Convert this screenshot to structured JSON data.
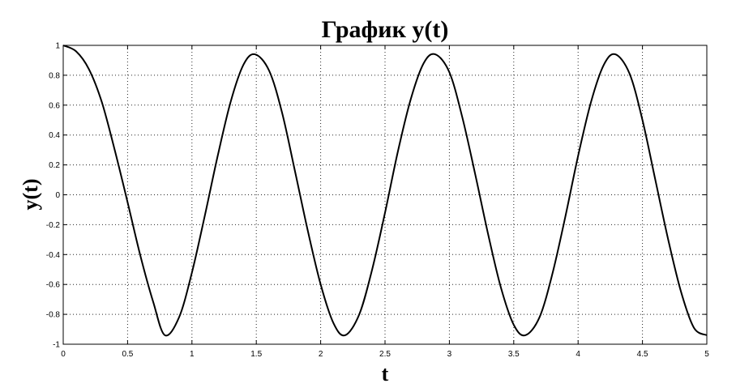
{
  "chart_data": {
    "type": "line",
    "title": "График y(t)",
    "xlabel": "t",
    "ylabel": "y(t)",
    "xlim": [
      0,
      5
    ],
    "ylim": [
      -1,
      1
    ],
    "grid": true,
    "xticks": [
      0,
      0.5,
      1,
      1.5,
      2,
      2.5,
      3,
      3.5,
      4,
      4.5,
      5
    ],
    "xtick_labels": [
      "0",
      "0.5",
      "1",
      "1.5",
      "2",
      "2.5",
      "3",
      "3.5",
      "4",
      "4.5",
      "5"
    ],
    "yticks": [
      1,
      0.8,
      0.6,
      0.4,
      0.2,
      0,
      -0.2,
      -0.4,
      -0.6,
      -0.8,
      -1
    ],
    "ytick_labels": [
      "1",
      "0.8",
      "0.6",
      "0.4",
      "0.2",
      "0",
      "-0.2",
      "-0.4",
      "-0.6",
      "-0.8",
      "-1"
    ],
    "line_color": "#000000",
    "series": [
      {
        "x": [
          0,
          0.1,
          0.2,
          0.3,
          0.4,
          0.5,
          0.6,
          0.7,
          0.79,
          0.9,
          1.0,
          1.1,
          1.2,
          1.3,
          1.4,
          1.49,
          1.6,
          1.7,
          1.8,
          1.9,
          2.0,
          2.1,
          2.19,
          2.3,
          2.4,
          2.5,
          2.6,
          2.7,
          2.8,
          2.89,
          3.0,
          3.1,
          3.2,
          3.3,
          3.4,
          3.5,
          3.59,
          3.7,
          3.8,
          3.9,
          4.0,
          4.1,
          4.2,
          4.29,
          4.4,
          4.5,
          4.6,
          4.7,
          4.8,
          4.9,
          5.0
        ],
        "y": [
          1.0,
          0.96,
          0.84,
          0.62,
          0.3,
          -0.05,
          -0.41,
          -0.72,
          -0.94,
          -0.82,
          -0.52,
          -0.14,
          0.26,
          0.62,
          0.87,
          0.94,
          0.83,
          0.55,
          0.16,
          -0.24,
          -0.6,
          -0.86,
          -0.94,
          -0.8,
          -0.5,
          -0.12,
          0.29,
          0.64,
          0.88,
          0.94,
          0.82,
          0.52,
          0.14,
          -0.26,
          -0.62,
          -0.87,
          -0.94,
          -0.82,
          -0.53,
          -0.15,
          0.26,
          0.62,
          0.87,
          0.94,
          0.81,
          0.5,
          0.1,
          -0.3,
          -0.65,
          -0.89,
          -0.94
        ]
      }
    ]
  }
}
